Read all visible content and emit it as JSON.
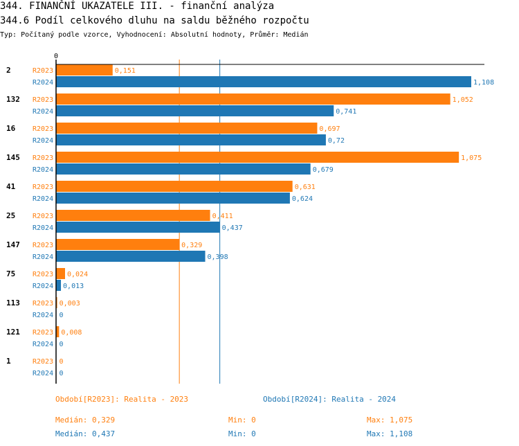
{
  "header": {
    "title": "344. FINANČNÍ UKAZATELE III. - finanční analýza",
    "subtitle": "344.6 Podíl celkového dluhu na saldu běžného rozpočtu",
    "info": "Typ: Počítaný podle vzorce, Vyhodnocení: Absolutní hodnoty, Průměr: Medián"
  },
  "chart_data": {
    "type": "bar",
    "orientation": "horizontal",
    "axis_zero_label": "0",
    "categories": [
      "2",
      "132",
      "16",
      "145",
      "41",
      "25",
      "147",
      "75",
      "113",
      "121",
      "1"
    ],
    "series": [
      {
        "name": "R2023",
        "color": "#ff7f0e",
        "values": [
          0.151,
          1.052,
          0.697,
          1.075,
          0.631,
          0.411,
          0.329,
          0.024,
          0.003,
          0.008,
          0
        ],
        "labels": [
          "0,151",
          "1,052",
          "0,697",
          "1,075",
          "0,631",
          "0,411",
          "0,329",
          "0,024",
          "0,003",
          "0,008",
          "0"
        ]
      },
      {
        "name": "R2024",
        "color": "#1f77b4",
        "values": [
          1.108,
          0.741,
          0.72,
          0.679,
          0.624,
          0.437,
          0.398,
          0.013,
          0,
          0,
          0
        ],
        "labels": [
          "1,108",
          "0,741",
          "0,72",
          "0,679",
          "0,624",
          "0,437",
          "0,398",
          "0,013",
          "0",
          "0",
          "0"
        ]
      }
    ],
    "reference_lines": [
      {
        "series": "R2023",
        "value": 0.329
      },
      {
        "series": "R2024",
        "value": 0.437
      }
    ],
    "xlim": [
      0,
      1.108
    ]
  },
  "legend": {
    "r2023": "Období[R2023]: Realita - 2023",
    "r2024": "Období[R2024]: Realita - 2024"
  },
  "stats": {
    "r2023": {
      "median": "Medián: 0,329",
      "min": "Min: 0",
      "max": "Max: 1,075"
    },
    "r2024": {
      "median": "Medián: 0,437",
      "min": "Min: 0",
      "max": "Max: 1,108"
    }
  }
}
